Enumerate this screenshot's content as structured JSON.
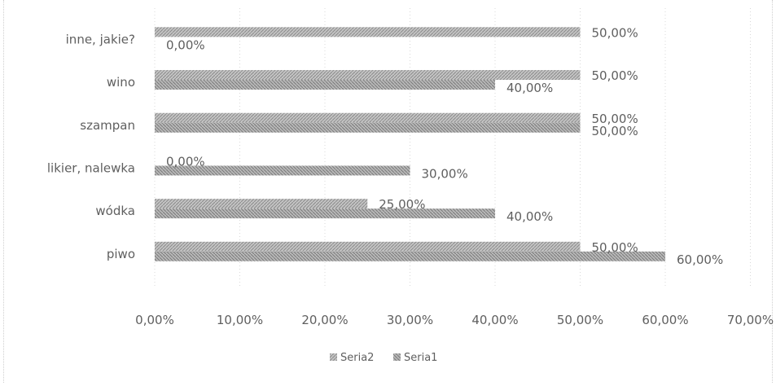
{
  "chart_data": {
    "type": "bar",
    "orientation": "horizontal",
    "categories": [
      "piwo",
      "wódka",
      "likier, nalewka",
      "szampan",
      "wino",
      "inne, jakie?"
    ],
    "series": [
      {
        "name": "Seria1",
        "values": [
          60,
          40,
          30,
          50,
          40,
          0
        ],
        "labels": [
          "60,00%",
          "40,00%",
          "30,00%",
          "50,00%",
          "40,00%",
          "0,00%"
        ],
        "color": "#b0b0b0"
      },
      {
        "name": "Seria2",
        "values": [
          50,
          25,
          0,
          50,
          50,
          50
        ],
        "labels": [
          "50,00%",
          "25,00%",
          "0,00%",
          "50,00%",
          "50,00%",
          "50,00%"
        ],
        "color": "#9a9a9a"
      }
    ],
    "xlim": [
      0,
      70
    ],
    "x_ticks": [
      "0,00%",
      "10,00%",
      "20,00%",
      "30,00%",
      "40,00%",
      "50,00%",
      "60,00%",
      "70,00%"
    ],
    "grid": true,
    "legend_position": "bottom",
    "legend": [
      "Seria2",
      "Seria1"
    ],
    "title": "",
    "xlabel": "",
    "ylabel": ""
  }
}
